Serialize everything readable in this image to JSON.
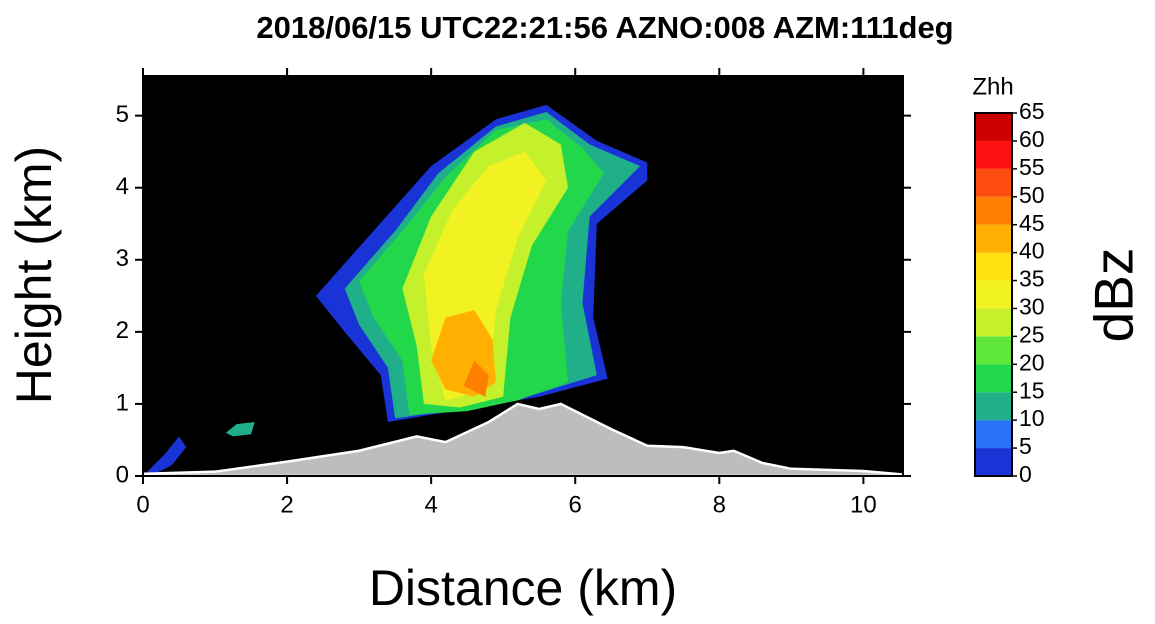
{
  "chart_data": {
    "type": "rhi",
    "title": "2018/06/15 UTC22:21:56 AZNO:008 AZM:111deg",
    "x_label": "Distance (km)",
    "y_label": "Height (km)",
    "xlim": [
      0,
      10.55
    ],
    "ylim": [
      0,
      5.55
    ],
    "xticks": [
      0,
      2,
      4,
      6,
      8,
      10
    ],
    "yticks": [
      0,
      1,
      2,
      3,
      4,
      5
    ],
    "background": "#000000",
    "colorbar": {
      "title": "Zhh",
      "label": "dBz",
      "levels": [
        0,
        5,
        10,
        15,
        20,
        25,
        30,
        35,
        40,
        45,
        50,
        55,
        60,
        65
      ],
      "colors": [
        "#1a33d6",
        "#2a72f5",
        "#1fb08a",
        "#22d84a",
        "#5fe63a",
        "#c4f02c",
        "#f2f222",
        "#ffe010",
        "#ffb000",
        "#ff7f00",
        "#ff4d10",
        "#ff1010",
        "#cc0000"
      ]
    },
    "regions": [
      {
        "level": 0,
        "points": [
          [
            2.4,
            2.5
          ],
          [
            3.2,
            3.4
          ],
          [
            4.0,
            4.3
          ],
          [
            4.9,
            4.95
          ],
          [
            5.6,
            5.15
          ],
          [
            6.3,
            4.65
          ],
          [
            7.0,
            4.35
          ],
          [
            7.0,
            4.1
          ],
          [
            6.3,
            3.5
          ],
          [
            6.25,
            2.2
          ],
          [
            6.45,
            1.35
          ],
          [
            5.5,
            1.1
          ],
          [
            4.9,
            1.0
          ],
          [
            3.4,
            0.75
          ],
          [
            3.3,
            1.4
          ],
          [
            2.8,
            2.0
          ]
        ]
      },
      {
        "level": 10,
        "points": [
          [
            2.8,
            2.6
          ],
          [
            3.5,
            3.4
          ],
          [
            4.1,
            4.2
          ],
          [
            4.9,
            4.85
          ],
          [
            5.6,
            5.05
          ],
          [
            6.2,
            4.6
          ],
          [
            6.9,
            4.3
          ],
          [
            6.2,
            3.6
          ],
          [
            6.1,
            2.4
          ],
          [
            6.3,
            1.4
          ],
          [
            5.5,
            1.15
          ],
          [
            4.9,
            1.0
          ],
          [
            3.5,
            0.8
          ],
          [
            3.4,
            1.5
          ],
          [
            3.0,
            2.1
          ]
        ]
      },
      {
        "level": 15,
        "points": [
          [
            3.0,
            2.7
          ],
          [
            3.6,
            3.4
          ],
          [
            4.2,
            4.15
          ],
          [
            4.9,
            4.8
          ],
          [
            5.6,
            4.95
          ],
          [
            6.1,
            4.55
          ],
          [
            6.4,
            4.2
          ],
          [
            5.9,
            3.4
          ],
          [
            5.8,
            2.4
          ],
          [
            5.9,
            1.3
          ],
          [
            5.2,
            1.05
          ],
          [
            4.5,
            0.9
          ],
          [
            3.7,
            0.85
          ],
          [
            3.6,
            1.6
          ],
          [
            3.2,
            2.2
          ]
        ]
      },
      {
        "level": 25,
        "points": [
          [
            3.6,
            2.6
          ],
          [
            4.0,
            3.6
          ],
          [
            4.6,
            4.5
          ],
          [
            5.3,
            4.9
          ],
          [
            5.8,
            4.6
          ],
          [
            5.9,
            4.0
          ],
          [
            5.4,
            3.2
          ],
          [
            5.1,
            2.2
          ],
          [
            5.0,
            1.1
          ],
          [
            4.4,
            0.95
          ],
          [
            3.9,
            1.0
          ],
          [
            3.8,
            1.8
          ]
        ]
      },
      {
        "level": 30,
        "points": [
          [
            3.9,
            2.8
          ],
          [
            4.3,
            3.7
          ],
          [
            4.8,
            4.3
          ],
          [
            5.3,
            4.5
          ],
          [
            5.6,
            4.1
          ],
          [
            5.2,
            3.3
          ],
          [
            4.9,
            2.3
          ],
          [
            4.8,
            1.2
          ],
          [
            4.2,
            1.05
          ],
          [
            4.0,
            1.8
          ]
        ]
      },
      {
        "level": 40,
        "points": [
          [
            4.0,
            1.6
          ],
          [
            4.2,
            2.2
          ],
          [
            4.6,
            2.3
          ],
          [
            4.85,
            1.9
          ],
          [
            4.9,
            1.3
          ],
          [
            4.6,
            1.1
          ],
          [
            4.2,
            1.2
          ]
        ]
      },
      {
        "level": 45,
        "points": [
          [
            4.45,
            1.25
          ],
          [
            4.6,
            1.6
          ],
          [
            4.8,
            1.4
          ],
          [
            4.75,
            1.1
          ]
        ]
      },
      {
        "level": 0,
        "points": [
          [
            0.05,
            0.05
          ],
          [
            0.3,
            0.3
          ],
          [
            0.5,
            0.55
          ],
          [
            0.6,
            0.4
          ],
          [
            0.4,
            0.15
          ],
          [
            0.1,
            0.0
          ]
        ]
      },
      {
        "level": 10,
        "points": [
          [
            1.15,
            0.6
          ],
          [
            1.3,
            0.72
          ],
          [
            1.55,
            0.75
          ],
          [
            1.5,
            0.58
          ],
          [
            1.25,
            0.55
          ]
        ]
      }
    ],
    "terrain": {
      "color": "#bdbdbd",
      "x": [
        0,
        1,
        2,
        3,
        3.8,
        4.2,
        4.8,
        5.2,
        5.5,
        5.8,
        6.5,
        7,
        7.5,
        8,
        8.2,
        8.6,
        9,
        10,
        10.55
      ],
      "values": [
        0.03,
        0.06,
        0.2,
        0.35,
        0.55,
        0.47,
        0.75,
        1.0,
        0.93,
        1.0,
        0.65,
        0.42,
        0.4,
        0.32,
        0.35,
        0.18,
        0.1,
        0.07,
        0.02
      ]
    }
  }
}
